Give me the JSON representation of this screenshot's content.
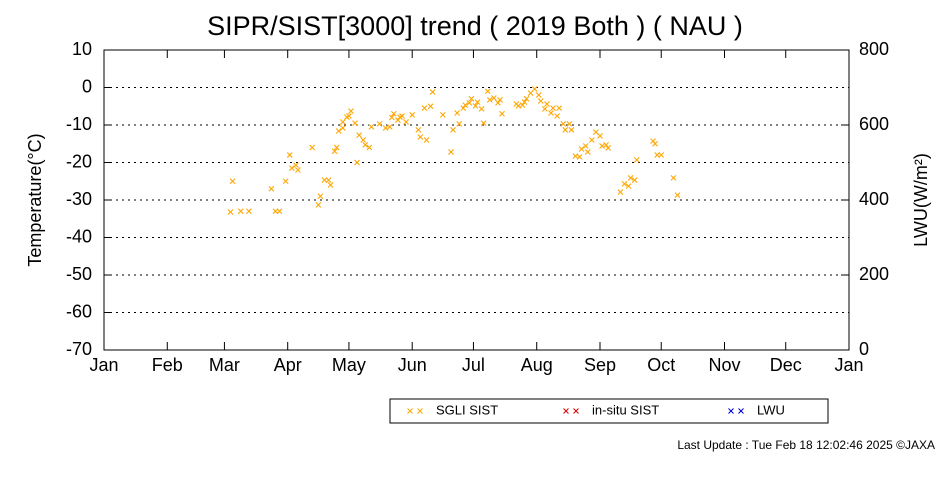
{
  "chart_data": {
    "type": "scatter",
    "title": "SIPR/SIST[3000] trend ( 2019 Both ) ( NAU )",
    "y_label": "Temperature(°C)",
    "y2_label": "LWU(W/m²)",
    "footer": "Last Update : Tue Feb 18 12:02:46 2025 ©JAXA",
    "xlim": [
      0,
      365
    ],
    "xticks": [
      {
        "value": 0,
        "label": "Jan"
      },
      {
        "value": 31,
        "label": "Feb"
      },
      {
        "value": 59,
        "label": "Mar"
      },
      {
        "value": 90,
        "label": "Apr"
      },
      {
        "value": 120,
        "label": "May"
      },
      {
        "value": 151,
        "label": "Jun"
      },
      {
        "value": 181,
        "label": "Jul"
      },
      {
        "value": 212,
        "label": "Aug"
      },
      {
        "value": 243,
        "label": "Sep"
      },
      {
        "value": 273,
        "label": "Oct"
      },
      {
        "value": 304,
        "label": "Nov"
      },
      {
        "value": 334,
        "label": "Dec"
      },
      {
        "value": 365,
        "label": "Jan"
      }
    ],
    "ylim": [
      -70,
      10
    ],
    "yticks": [
      -70,
      -60,
      -50,
      -40,
      -30,
      -20,
      -10,
      0,
      10
    ],
    "y2lim": [
      0,
      800
    ],
    "y2ticks": [
      0,
      200,
      400,
      600,
      800
    ],
    "grid": true,
    "series": [
      {
        "name": "SGLI SIST",
        "color": "#ffa500",
        "x": [
          62,
          63,
          67,
          71,
          82,
          84,
          86,
          89,
          91,
          92,
          94,
          95,
          102,
          105,
          106,
          108,
          110,
          111,
          113,
          114,
          115,
          117,
          117,
          119,
          120,
          121,
          123,
          124,
          125,
          127,
          128,
          130,
          131,
          135,
          138,
          140,
          141,
          142,
          144,
          145,
          146,
          148,
          151,
          154,
          155,
          157,
          158,
          160,
          161,
          166,
          170,
          171,
          173,
          174,
          176,
          177,
          179,
          180,
          182,
          183,
          185,
          186,
          188,
          189,
          191,
          193,
          194,
          195,
          202,
          203,
          205,
          206,
          207,
          209,
          211,
          213,
          214,
          216,
          217,
          219,
          220,
          222,
          223,
          225,
          226,
          228,
          229,
          231,
          233,
          234,
          236,
          237,
          239,
          241,
          243,
          244,
          246,
          247,
          253,
          255,
          257,
          258,
          260,
          261,
          269,
          270,
          271,
          273,
          279,
          281
        ],
        "values": [
          -33.2,
          -25,
          -33,
          -33,
          -27,
          -33,
          -33,
          -25,
          -18,
          -21.5,
          -20.7,
          -22,
          -16,
          -31.3,
          -29,
          -24.7,
          -24.7,
          -26,
          -17,
          -16,
          -11.6,
          -9.2,
          -10.8,
          -7.9,
          -7.6,
          -6.3,
          -9.5,
          -20,
          -12.7,
          -14,
          -15.3,
          -16,
          -10.5,
          -9.7,
          -10.8,
          -10.5,
          -8,
          -7,
          -8.7,
          -7.9,
          -7.6,
          -9.2,
          -7.3,
          -11.3,
          -13.2,
          -5.5,
          -14,
          -5,
          -1.2,
          -7.3,
          -17.2,
          -11.3,
          -6.8,
          -9.7,
          -5.5,
          -4.7,
          -4.1,
          -3,
          -4.9,
          -3.9,
          -5.7,
          -9.5,
          -1,
          -3.3,
          -2.8,
          -4.1,
          -3.3,
          -7,
          -4.4,
          -4.9,
          -4.7,
          -3.9,
          -3,
          -1.5,
          -0.4,
          -2,
          -3.6,
          -5.7,
          -4.4,
          -6.8,
          -5.5,
          -7.6,
          -5.5,
          -9.7,
          -11.3,
          -9.7,
          -11.3,
          -18.3,
          -18.5,
          -16.4,
          -15.6,
          -17.2,
          -14,
          -11.9,
          -12.9,
          -15.6,
          -15.3,
          -16.1,
          -27.9,
          -25.7,
          -26.3,
          -24.1,
          -24.7,
          -19.3,
          -14.3,
          -15,
          -18,
          -18,
          -24.1,
          -28.7
        ]
      },
      {
        "name": "in-situ SIST",
        "color": "#e00000",
        "x": [],
        "values": []
      },
      {
        "name": "LWU",
        "color": "#0000e0",
        "axis": "y2",
        "x": [],
        "values": []
      }
    ]
  }
}
